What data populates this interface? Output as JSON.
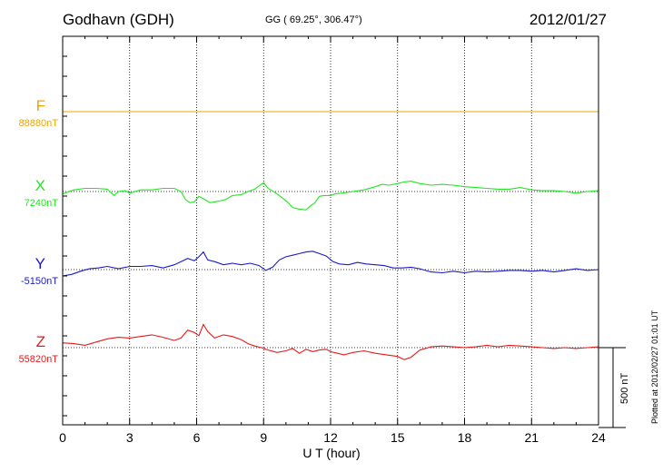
{
  "header": {
    "station": "Godhavn (GDH)",
    "coords": "GG ( 69.25°, 306.47°)",
    "date": "2012/01/27"
  },
  "footer": {
    "scale_label": "500 nT",
    "plotted": "Plotted at 2012/02/27 01:01 UT"
  },
  "chart_data": {
    "type": "line",
    "xlabel": "U T (hour)",
    "ylabel": "",
    "xlim": [
      0,
      24
    ],
    "xticks": [
      0,
      3,
      6,
      9,
      12,
      15,
      18,
      21,
      24
    ],
    "scale_nT": 500,
    "grid": true,
    "series": [
      {
        "name": "F",
        "baseline_label": "88880nT",
        "color": "#f0a500",
        "x": [
          0,
          24
        ],
        "y": [
          0,
          0
        ]
      },
      {
        "name": "X",
        "baseline_label": "7240nT",
        "color": "#22e622",
        "x": [
          0,
          0.5,
          1,
          1.5,
          2,
          2.3,
          2.5,
          2.8,
          3,
          3.5,
          4,
          4.5,
          5,
          5.3,
          5.5,
          5.7,
          5.9,
          6.1,
          6.3,
          6.6,
          7,
          7.3,
          7.6,
          8,
          8.3,
          8.6,
          8.8,
          9,
          9.2,
          9.5,
          9.8,
          10.1,
          10.3,
          10.6,
          10.9,
          11.1,
          11.3,
          11.5,
          11.7,
          12,
          12.2,
          12.5,
          13,
          13.5,
          14,
          14.3,
          14.6,
          15,
          15.3,
          15.6,
          16,
          16.5,
          17,
          17.5,
          18,
          18.5,
          19,
          19.5,
          20,
          20.5,
          21,
          21.5,
          22,
          22.5,
          23,
          23.5,
          24
        ],
        "y": [
          -15,
          10,
          20,
          20,
          15,
          -25,
          0,
          5,
          -10,
          10,
          10,
          20,
          20,
          0,
          -50,
          -70,
          -65,
          -30,
          -45,
          -70,
          -60,
          -50,
          -25,
          -20,
          0,
          15,
          35,
          55,
          20,
          -5,
          -35,
          -70,
          -100,
          -110,
          -115,
          -90,
          -70,
          -30,
          -25,
          -25,
          -15,
          -10,
          0,
          10,
          30,
          45,
          40,
          50,
          60,
          65,
          50,
          40,
          45,
          40,
          30,
          25,
          20,
          15,
          15,
          25,
          10,
          5,
          5,
          0,
          -10,
          0,
          5
        ]
      },
      {
        "name": "Y",
        "baseline_label": "-5150nT",
        "color": "#1a1acc",
        "x": [
          0,
          0.4,
          0.8,
          1.2,
          1.6,
          2,
          2.5,
          3,
          3.5,
          4,
          4.5,
          5,
          5.3,
          5.6,
          5.9,
          6.1,
          6.3,
          6.5,
          6.8,
          7.2,
          7.6,
          8,
          8.4,
          8.8,
          9.1,
          9.4,
          9.7,
          10,
          10.3,
          10.6,
          10.9,
          11.2,
          11.5,
          11.8,
          12.1,
          12.4,
          12.8,
          13.2,
          13.6,
          14,
          14.4,
          14.8,
          15.2,
          15.6,
          16,
          16.5,
          17,
          17.5,
          18,
          18.5,
          19,
          19.5,
          20,
          20.5,
          21,
          21.5,
          22,
          22.5,
          23,
          23.5,
          24
        ],
        "y": [
          -40,
          -30,
          -10,
          5,
          10,
          20,
          5,
          20,
          20,
          25,
          10,
          30,
          50,
          70,
          55,
          80,
          110,
          60,
          50,
          30,
          40,
          30,
          40,
          25,
          -5,
          15,
          60,
          80,
          90,
          100,
          110,
          115,
          100,
          85,
          50,
          35,
          30,
          45,
          35,
          30,
          25,
          10,
          10,
          15,
          5,
          -15,
          -20,
          -10,
          -20,
          -10,
          -15,
          -10,
          -5,
          -5,
          -10,
          -5,
          -15,
          -5,
          5,
          -5,
          0
        ]
      },
      {
        "name": "Z",
        "baseline_label": "55820nT",
        "color": "#e61a1a",
        "x": [
          0,
          0.5,
          1,
          1.5,
          2,
          2.5,
          3,
          3.5,
          4,
          4.5,
          5,
          5.3,
          5.6,
          5.9,
          6.1,
          6.3,
          6.5,
          6.8,
          7.2,
          7.6,
          8,
          8.3,
          8.6,
          8.9,
          9.2,
          9.6,
          10,
          10.3,
          10.6,
          10.9,
          11.2,
          11.5,
          11.8,
          12,
          12.3,
          12.6,
          13,
          13.5,
          14,
          14.5,
          15,
          15.3,
          15.6,
          16,
          16.5,
          17,
          17.5,
          18,
          18.5,
          19,
          19.5,
          20,
          20.5,
          21,
          21.5,
          22,
          22.5,
          23,
          23.5,
          24
        ],
        "y": [
          30,
          25,
          15,
          35,
          55,
          65,
          60,
          70,
          80,
          65,
          45,
          60,
          110,
          95,
          75,
          145,
          100,
          60,
          80,
          70,
          50,
          25,
          10,
          0,
          -15,
          -30,
          -20,
          -5,
          -35,
          -10,
          -25,
          -15,
          -10,
          -25,
          -35,
          -45,
          -30,
          -20,
          -35,
          -45,
          -55,
          -75,
          -60,
          -15,
          5,
          10,
          5,
          0,
          5,
          15,
          5,
          15,
          10,
          5,
          0,
          -5,
          0,
          -5,
          0,
          5
        ]
      }
    ]
  }
}
